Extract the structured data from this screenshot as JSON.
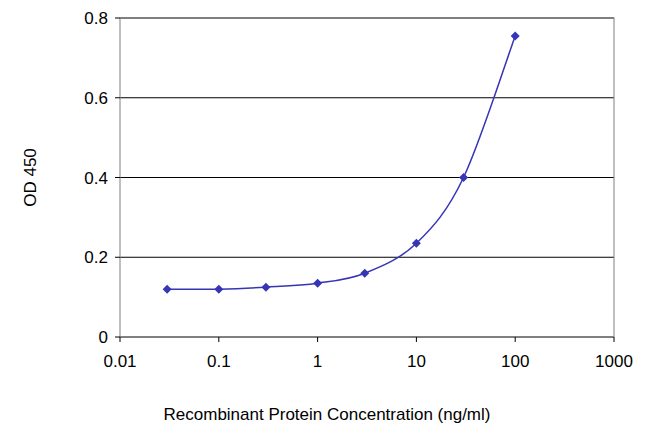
{
  "chart_data": {
    "type": "line",
    "xlabel": "Recombinant Protein Concentration (ng/ml)",
    "ylabel": "OD 450",
    "x": [
      0.03,
      0.1,
      0.3,
      1,
      3,
      10,
      30,
      100
    ],
    "values": [
      0.12,
      0.12,
      0.125,
      0.135,
      0.16,
      0.235,
      0.4,
      0.755
    ],
    "color": "#3535b5",
    "marker": "diamond",
    "log": "x",
    "grid": true,
    "xlim": [
      0.01,
      1000
    ],
    "xticks": [
      0.01,
      0.1,
      1,
      10,
      100,
      1000
    ],
    "ylim": [
      0,
      0.8
    ],
    "yticks": [
      0,
      0.2,
      0.4,
      0.6,
      0.8
    ]
  }
}
